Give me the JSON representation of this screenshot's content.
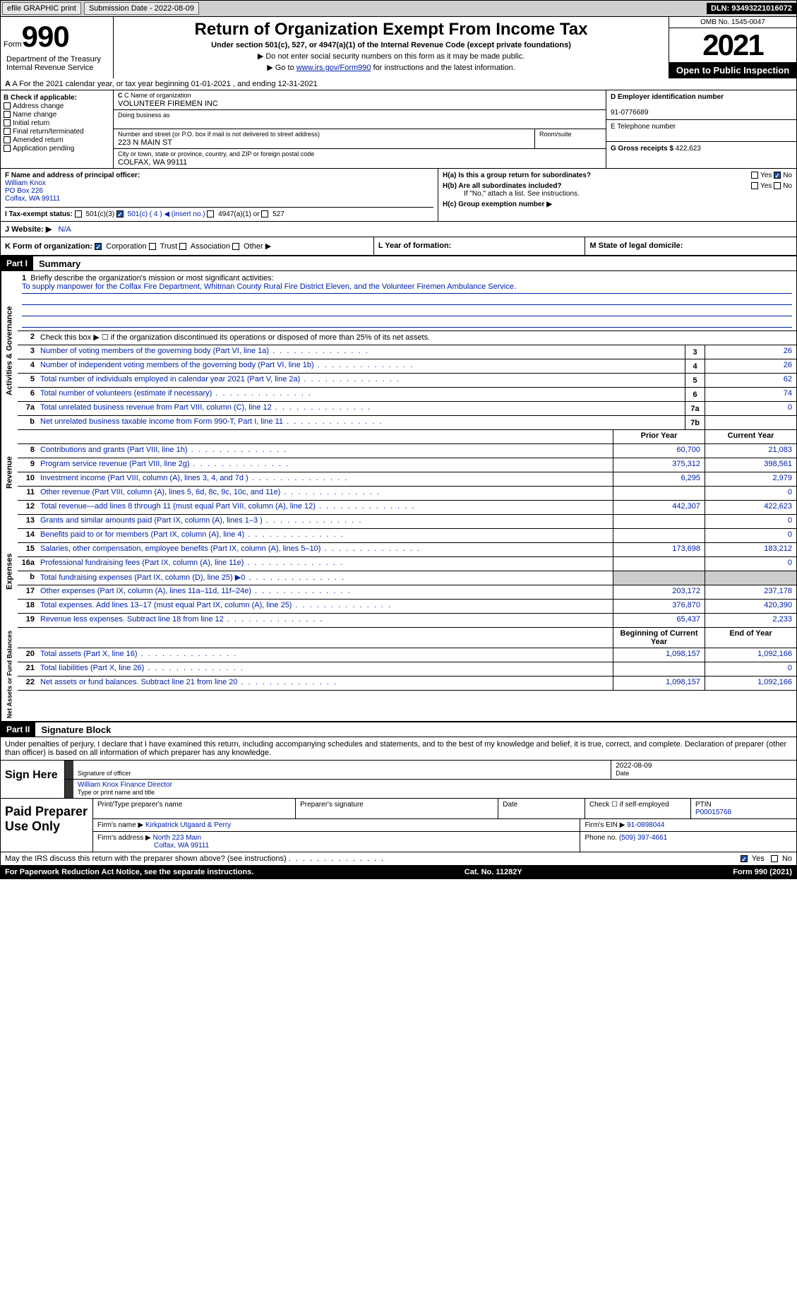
{
  "topbar": {
    "efile": "efile GRAPHIC print",
    "submission_label": "Submission Date - 2022-08-09",
    "dln": "DLN: 93493221016072"
  },
  "header": {
    "form_word": "Form",
    "form_number": "990",
    "dept": "Department of the Treasury Internal Revenue Service",
    "title": "Return of Organization Exempt From Income Tax",
    "subtitle": "Under section 501(c), 527, or 4947(a)(1) of the Internal Revenue Code (except private foundations)",
    "note1": "▶ Do not enter social security numbers on this form as it may be made public.",
    "note2_pre": "▶ Go to ",
    "note2_link": "www.irs.gov/Form990",
    "note2_post": " for instructions and the latest information.",
    "omb": "OMB No. 1545-0047",
    "year": "2021",
    "inspection": "Open to Public Inspection"
  },
  "rowA": "A For the 2021 calendar year, or tax year beginning 01-01-2021    , and ending 12-31-2021",
  "sectionB": {
    "header": "B Check if applicable:",
    "items": [
      "Address change",
      "Name change",
      "Initial return",
      "Final return/terminated",
      "Amended return",
      "Application pending"
    ]
  },
  "sectionC": {
    "name_label": "C Name of organization",
    "name": "VOLUNTEER FIREMEN INC",
    "dba_label": "Doing business as",
    "dba": "",
    "street_label": "Number and street (or P.O. box if mail is not delivered to street address)",
    "room_label": "Room/suite",
    "street": "223 N MAIN ST",
    "city_label": "City or town, state or province, country, and ZIP or foreign postal code",
    "city": "COLFAX, WA  99111"
  },
  "sectionD": {
    "ein_label": "D Employer identification number",
    "ein": "91-0776689",
    "phone_label": "E Telephone number",
    "phone": "",
    "gross_label": "G Gross receipts $",
    "gross": "422,623"
  },
  "sectionF": {
    "label": "F  Name and address of principal officer:",
    "name": "William Knox",
    "addr1": "PO Box 226",
    "addr2": "Colfax, WA  99111"
  },
  "sectionH": {
    "ha_label": "H(a)  Is this a group return for subordinates?",
    "hb_label": "H(b)  Are all subordinates included?",
    "hb_note": "If \"No,\" attach a list. See instructions.",
    "hc_label": "H(c)  Group exemption number ▶",
    "yes": "Yes",
    "no": "No"
  },
  "taxExempt": {
    "label": "I  Tax-exempt status:",
    "opt1": "501(c)(3)",
    "opt2": "501(c) ( 4 ) ◀ (insert no.)",
    "opt3": "4947(a)(1) or",
    "opt4": "527"
  },
  "website": {
    "label": "J Website: ▶",
    "val": "N/A"
  },
  "rowK": {
    "k_label": "K Form of organization:",
    "opts": [
      "Corporation",
      "Trust",
      "Association",
      "Other ▶"
    ],
    "l_label": "L Year of formation:",
    "m_label": "M State of legal domicile:"
  },
  "partI": {
    "tag": "Part I",
    "title": "Summary"
  },
  "mission": {
    "num": "1",
    "label": "Briefly describe the organization's mission or most significant activities:",
    "text": "To supply manpower for the Colfax Fire Department, Whitman County Rural Fire District Eleven, and the Volunteer Firemen Ambulance Service."
  },
  "line2": "Check this box ▶ ☐  if the organization discontinued its operations or disposed of more than 25% of its net assets.",
  "summary": {
    "sidebars": [
      "Activities & Governance",
      "Revenue",
      "Expenses",
      "Net Assets or Fund Balances"
    ],
    "governance": [
      {
        "n": "3",
        "d": "Number of voting members of the governing body (Part VI, line 1a)",
        "b": "3",
        "v": "26"
      },
      {
        "n": "4",
        "d": "Number of independent voting members of the governing body (Part VI, line 1b)",
        "b": "4",
        "v": "26"
      },
      {
        "n": "5",
        "d": "Total number of individuals employed in calendar year 2021 (Part V, line 2a)",
        "b": "5",
        "v": "62"
      },
      {
        "n": "6",
        "d": "Total number of volunteers (estimate if necessary)",
        "b": "6",
        "v": "74"
      },
      {
        "n": "7a",
        "d": "Total unrelated business revenue from Part VIII, column (C), line 12",
        "b": "7a",
        "v": "0"
      },
      {
        "n": "b",
        "d": "Net unrelated business taxable income from Form 990-T, Part I, line 11",
        "b": "7b",
        "v": ""
      }
    ],
    "col_headers": {
      "prior": "Prior Year",
      "current": "Current Year"
    },
    "revenue": [
      {
        "n": "8",
        "d": "Contributions and grants (Part VIII, line 1h)",
        "p": "60,700",
        "c": "21,083"
      },
      {
        "n": "9",
        "d": "Program service revenue (Part VIII, line 2g)",
        "p": "375,312",
        "c": "398,561"
      },
      {
        "n": "10",
        "d": "Investment income (Part VIII, column (A), lines 3, 4, and 7d )",
        "p": "6,295",
        "c": "2,979"
      },
      {
        "n": "11",
        "d": "Other revenue (Part VIII, column (A), lines 5, 6d, 8c, 9c, 10c, and 11e)",
        "p": "",
        "c": "0"
      },
      {
        "n": "12",
        "d": "Total revenue—add lines 8 through 11 (must equal Part VIII, column (A), line 12)",
        "p": "442,307",
        "c": "422,623"
      }
    ],
    "expenses": [
      {
        "n": "13",
        "d": "Grants and similar amounts paid (Part IX, column (A), lines 1–3 )",
        "p": "",
        "c": "0"
      },
      {
        "n": "14",
        "d": "Benefits paid to or for members (Part IX, column (A), line 4)",
        "p": "",
        "c": "0"
      },
      {
        "n": "15",
        "d": "Salaries, other compensation, employee benefits (Part IX, column (A), lines 5–10)",
        "p": "173,698",
        "c": "183,212"
      },
      {
        "n": "16a",
        "d": "Professional fundraising fees (Part IX, column (A), line 11e)",
        "p": "",
        "c": "0"
      },
      {
        "n": "b",
        "d": "Total fundraising expenses (Part IX, column (D), line 25) ▶0",
        "p": "shade",
        "c": "shade"
      },
      {
        "n": "17",
        "d": "Other expenses (Part IX, column (A), lines 11a–11d, 11f–24e)",
        "p": "203,172",
        "c": "237,178"
      },
      {
        "n": "18",
        "d": "Total expenses. Add lines 13–17 (must equal Part IX, column (A), line 25)",
        "p": "376,870",
        "c": "420,390"
      },
      {
        "n": "19",
        "d": "Revenue less expenses. Subtract line 18 from line 12",
        "p": "65,437",
        "c": "2,233"
      }
    ],
    "net_headers": {
      "begin": "Beginning of Current Year",
      "end": "End of Year"
    },
    "net": [
      {
        "n": "20",
        "d": "Total assets (Part X, line 16)",
        "p": "1,098,157",
        "c": "1,092,166"
      },
      {
        "n": "21",
        "d": "Total liabilities (Part X, line 26)",
        "p": "",
        "c": "0"
      },
      {
        "n": "22",
        "d": "Net assets or fund balances. Subtract line 21 from line 20",
        "p": "1,098,157",
        "c": "1,092,166"
      }
    ]
  },
  "partII": {
    "tag": "Part II",
    "title": "Signature Block"
  },
  "declaration": "Under penalties of perjury, I declare that I have examined this return, including accompanying schedules and statements, and to the best of my knowledge and belief, it is true, correct, and complete. Declaration of preparer (other than officer) is based on all information of which preparer has any knowledge.",
  "sign": {
    "label": "Sign Here",
    "sig_label": "Signature of officer",
    "date": "2022-08-09",
    "date_label": "Date",
    "name": "William Knox Finance Director",
    "name_label": "Type or print name and title"
  },
  "preparer": {
    "label": "Paid Preparer Use Only",
    "h1": "Print/Type preparer's name",
    "h2": "Preparer's signature",
    "h3": "Date",
    "h4_pre": "Check ☐ if self-employed",
    "h5": "PTIN",
    "ptin": "P00015768",
    "firm_name_label": "Firm's name     ▶",
    "firm_name": "Kirkpatrick Utgaard & Perry",
    "firm_ein_label": "Firm's EIN ▶",
    "firm_ein": "91-0898044",
    "firm_addr_label": "Firm's address ▶",
    "firm_addr1": "North 223 Main",
    "firm_addr2": "Colfax, WA  99111",
    "phone_label": "Phone no.",
    "phone": "(509) 397-4661"
  },
  "footer": {
    "discuss": "May the IRS discuss this return with the preparer shown above? (see instructions)",
    "yes": "Yes",
    "no": "No",
    "notice": "For Paperwork Reduction Act Notice, see the separate instructions.",
    "cat": "Cat. No. 11282Y",
    "form": "Form 990 (2021)"
  }
}
